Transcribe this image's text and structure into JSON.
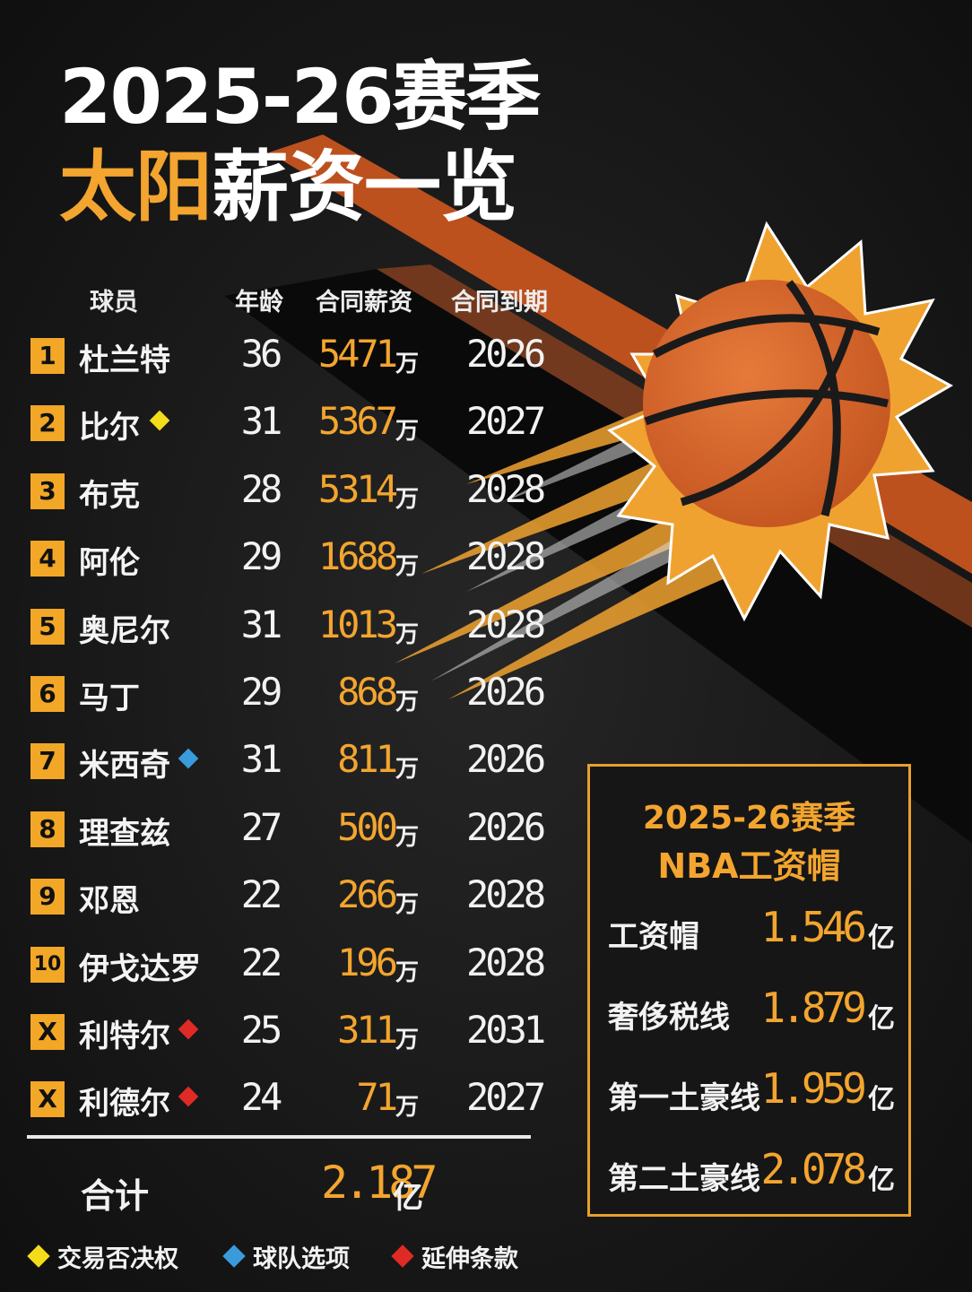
{
  "title": {
    "line1": "2025-26赛季",
    "line2_accent": "太阳",
    "line2_rest": "薪资一览"
  },
  "headers": {
    "player": "球员",
    "age": "年龄",
    "salary": "合同薪资",
    "expiry": "合同到期"
  },
  "rows": [
    {
      "rank": "1",
      "name": "杜兰特",
      "age": "36",
      "salary": "5471",
      "unit": "万",
      "expiry": "2026",
      "tag": ""
    },
    {
      "rank": "2",
      "name": "比尔",
      "age": "31",
      "salary": "5367",
      "unit": "万",
      "expiry": "2027",
      "tag": "trade-veto"
    },
    {
      "rank": "3",
      "name": "布克",
      "age": "28",
      "salary": "5314",
      "unit": "万",
      "expiry": "2028",
      "tag": ""
    },
    {
      "rank": "4",
      "name": "阿伦",
      "age": "29",
      "salary": "1688",
      "unit": "万",
      "expiry": "2028",
      "tag": ""
    },
    {
      "rank": "5",
      "name": "奥尼尔",
      "age": "31",
      "salary": "1013",
      "unit": "万",
      "expiry": "2028",
      "tag": ""
    },
    {
      "rank": "6",
      "name": "马丁",
      "age": "29",
      "salary": "868",
      "unit": "万",
      "expiry": "2026",
      "tag": ""
    },
    {
      "rank": "7",
      "name": "米西奇",
      "age": "31",
      "salary": "811",
      "unit": "万",
      "expiry": "2026",
      "tag": "team-option"
    },
    {
      "rank": "8",
      "name": "理查兹",
      "age": "27",
      "salary": "500",
      "unit": "万",
      "expiry": "2026",
      "tag": ""
    },
    {
      "rank": "9",
      "name": "邓恩",
      "age": "22",
      "salary": "266",
      "unit": "万",
      "expiry": "2028",
      "tag": ""
    },
    {
      "rank": "10",
      "name": "伊戈达罗",
      "age": "22",
      "salary": "196",
      "unit": "万",
      "expiry": "2028",
      "tag": ""
    },
    {
      "rank": "X",
      "name": "利特尔",
      "age": "25",
      "salary": "311",
      "unit": "万",
      "expiry": "2031",
      "tag": "extension"
    },
    {
      "rank": "X",
      "name": "利德尔",
      "age": "24",
      "salary": "71",
      "unit": "万",
      "expiry": "2027",
      "tag": "extension"
    }
  ],
  "total": {
    "label": "合计",
    "value": "2.187",
    "unit": "亿"
  },
  "legend": [
    {
      "tag": "trade-veto",
      "label": "交易否决权",
      "color": "#f5dc1b"
    },
    {
      "tag": "team-option",
      "label": "球队选项",
      "color": "#3a9bdc"
    },
    {
      "tag": "extension",
      "label": "延伸条款",
      "color": "#e02a26"
    }
  ],
  "cap_box": {
    "title1": "2025-26赛季",
    "title2": "NBA工资帽",
    "items": [
      {
        "label": "工资帽",
        "value": "1.546",
        "unit": "亿"
      },
      {
        "label": "奢侈税线",
        "value": "1.879",
        "unit": "亿"
      },
      {
        "label": "第一土豪线",
        "value": "1.959",
        "unit": "亿"
      },
      {
        "label": "第二土豪线",
        "value": "2.078",
        "unit": "亿"
      }
    ]
  },
  "colors": {
    "accent": "#f3a52f",
    "background": "#151515",
    "ball": "#d9692e",
    "sun": "#f0a230"
  }
}
